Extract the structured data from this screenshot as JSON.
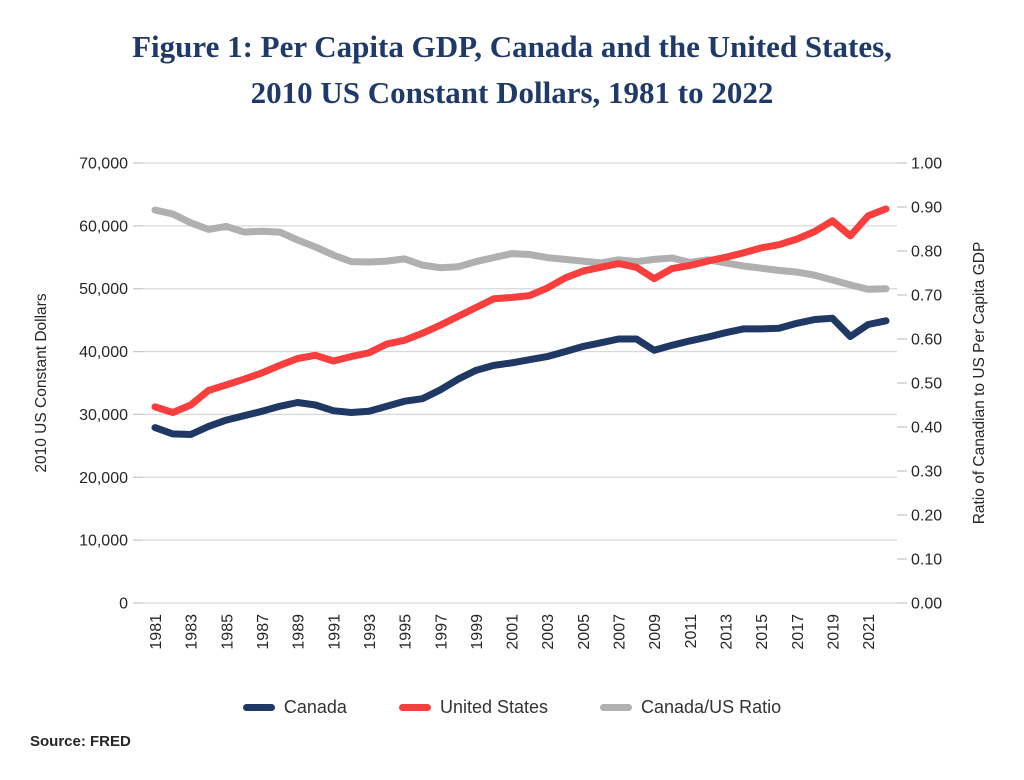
{
  "figure": {
    "title_line1": "Figure 1: Per Capita GDP, Canada and the United States,",
    "title_line2": "2010 US Constant Dollars, 1981 to 2022",
    "source": "Source: FRED"
  },
  "colors": {
    "canada": "#1f3864",
    "united_states": "#f93e3e",
    "ratio": "#b0b0b0",
    "gridline": "#d9d9d9",
    "tick": "#c9c9c9",
    "tick_label": "#262626",
    "title": "#1f3a68"
  },
  "legend": [
    {
      "label": "Canada",
      "color": "#1f3864"
    },
    {
      "label": "United States",
      "color": "#f93e3e"
    },
    {
      "label": "Canada/US Ratio",
      "color": "#b0b0b0"
    }
  ],
  "chart_data": {
    "type": "line",
    "title": "Figure 1: Per Capita GDP, Canada and the United States, 2010 US Constant Dollars, 1981 to 2022",
    "grid": "horizontal",
    "legend_position": "bottom",
    "x_years": [
      1981,
      1982,
      1983,
      1984,
      1985,
      1986,
      1987,
      1988,
      1989,
      1990,
      1991,
      1992,
      1993,
      1994,
      1995,
      1996,
      1997,
      1998,
      1999,
      2000,
      2001,
      2002,
      2003,
      2004,
      2005,
      2006,
      2007,
      2008,
      2009,
      2010,
      2011,
      2012,
      2013,
      2014,
      2015,
      2016,
      2017,
      2018,
      2019,
      2020,
      2021,
      2022
    ],
    "x_tick_years": [
      1981,
      1983,
      1985,
      1987,
      1989,
      1991,
      1993,
      1995,
      1997,
      1999,
      2001,
      2003,
      2005,
      2007,
      2009,
      2011,
      2013,
      2015,
      2017,
      2019,
      2021
    ],
    "left_axis": {
      "label": "2010 US Constant Dollars",
      "min": 0,
      "max": 70000,
      "tick_step": 10000,
      "tick_labels": [
        "0",
        "10,000",
        "20,000",
        "30,000",
        "40,000",
        "50,000",
        "60,000",
        "70,000"
      ]
    },
    "right_axis": {
      "label": "Ratio of Canadian to US Per Capita GDP",
      "min": 0,
      "max": 1,
      "tick_step": 0.1,
      "tick_labels": [
        "0.00",
        "0.10",
        "0.20",
        "0.30",
        "0.40",
        "0.50",
        "0.60",
        "0.70",
        "0.80",
        "0.90",
        "1.00"
      ]
    },
    "series": [
      {
        "name": "Canada",
        "axis": "left",
        "color": "#1f3864",
        "values": [
          27900,
          26900,
          26800,
          28100,
          29100,
          29800,
          30500,
          31300,
          31900,
          31500,
          30600,
          30300,
          30500,
          31300,
          32100,
          32500,
          33900,
          35600,
          37000,
          37800,
          38200,
          38700,
          39200,
          40000,
          40800,
          41400,
          42000,
          42000,
          40200,
          41000,
          41700,
          42300,
          43000,
          43600,
          43600,
          43700,
          44500,
          45100,
          45300,
          42400,
          44300,
          44900
        ]
      },
      {
        "name": "United States",
        "axis": "left",
        "color": "#f93e3e",
        "values": [
          31200,
          30300,
          31500,
          33800,
          34700,
          35600,
          36600,
          37800,
          38900,
          39400,
          38500,
          39200,
          39800,
          41200,
          41800,
          42900,
          44200,
          45600,
          47000,
          48400,
          48600,
          48900,
          50100,
          51700,
          52800,
          53400,
          54000,
          53400,
          51600,
          53200,
          53700,
          54400,
          55000,
          55700,
          56500,
          57000,
          57900,
          59100,
          60800,
          58400,
          61600,
          62700
        ]
      },
      {
        "name": "Canada/US Ratio",
        "axis": "right",
        "color": "#b0b0b0",
        "values": [
          0.893,
          0.884,
          0.864,
          0.849,
          0.856,
          0.843,
          0.845,
          0.843,
          0.825,
          0.809,
          0.791,
          0.776,
          0.775,
          0.777,
          0.782,
          0.768,
          0.762,
          0.764,
          0.776,
          0.785,
          0.794,
          0.792,
          0.785,
          0.781,
          0.777,
          0.773,
          0.78,
          0.776,
          0.781,
          0.784,
          0.774,
          0.78,
          0.773,
          0.766,
          0.761,
          0.756,
          0.752,
          0.745,
          0.734,
          0.723,
          0.713,
          0.714
        ]
      }
    ]
  }
}
